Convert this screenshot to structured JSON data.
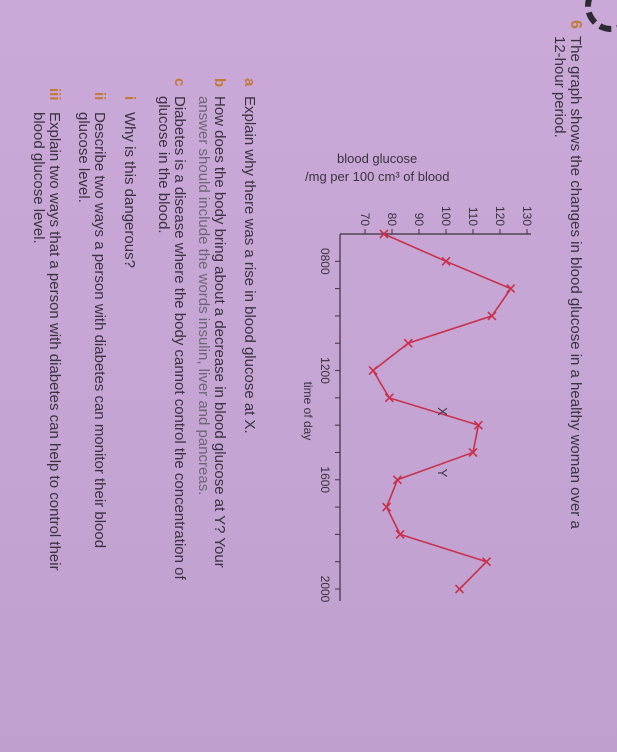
{
  "question": {
    "number": "6",
    "intro_line1": "The graph shows the changes in blood glucose in a healthy woman over a",
    "intro_line2": "12-hour period."
  },
  "parts": [
    {
      "label": "a",
      "lines": [
        "Explain why there was a rise in blood glucose at X."
      ]
    },
    {
      "label": "b",
      "lines": [
        "How does the body bring about a decrease in blood glucose at Y? Your",
        "answer should include the words insulin, liver and pancreas."
      ]
    },
    {
      "label": "c",
      "lines": [
        "Diabetes is a disease where the body cannot control the concentration of",
        "glucose in the blood."
      ]
    },
    {
      "label": "i",
      "lines": [
        "Why is this dangerous?"
      ]
    },
    {
      "label": "ii",
      "lines": [
        "Describe two ways a person with diabetes can monitor their blood",
        "glucose level."
      ]
    },
    {
      "label": "iii",
      "lines": [
        "Explain two ways that a person with diabetes can help to control their",
        "blood glucose level."
      ]
    }
  ],
  "colors": {
    "line": "#c8304c",
    "text": "#3b3142",
    "label": "#c07a3a",
    "background": "#c7a8d4"
  },
  "chart_data": {
    "type": "line",
    "ylabel_line1": "blood glucose",
    "ylabel_line2": "/mg per 100 cm³ of blood",
    "xlabel": "time of day",
    "x": [
      700,
      800,
      900,
      1000,
      1100,
      1200,
      1300,
      1400,
      1500,
      1600,
      1700,
      1800,
      1900,
      2000
    ],
    "values": [
      77,
      100,
      124,
      117,
      86,
      73,
      79,
      112,
      110,
      82,
      78,
      83,
      115,
      105
    ],
    "x_ticks": [
      800,
      900,
      1000,
      1100,
      1200,
      1300,
      1400,
      1500,
      1600,
      1700,
      1800,
      1900,
      2000
    ],
    "x_tick_labels": [
      "0800",
      "",
      "",
      "",
      "1200",
      "",
      "",
      "",
      "1600",
      "",
      "",
      "",
      "2000"
    ],
    "y_ticks": [
      70,
      80,
      90,
      100,
      110,
      120,
      130
    ],
    "y_tick_labels": [
      "70",
      "80",
      "90",
      "100",
      "110",
      "120",
      "130"
    ],
    "xlim": [
      700,
      2000
    ],
    "ylim": [
      65,
      132
    ],
    "annotations": [
      {
        "text": "X",
        "x": 1330,
        "y": 97
      },
      {
        "text": "Y",
        "x": 1545,
        "y": 97
      }
    ],
    "marker": "cross",
    "grid": false
  }
}
